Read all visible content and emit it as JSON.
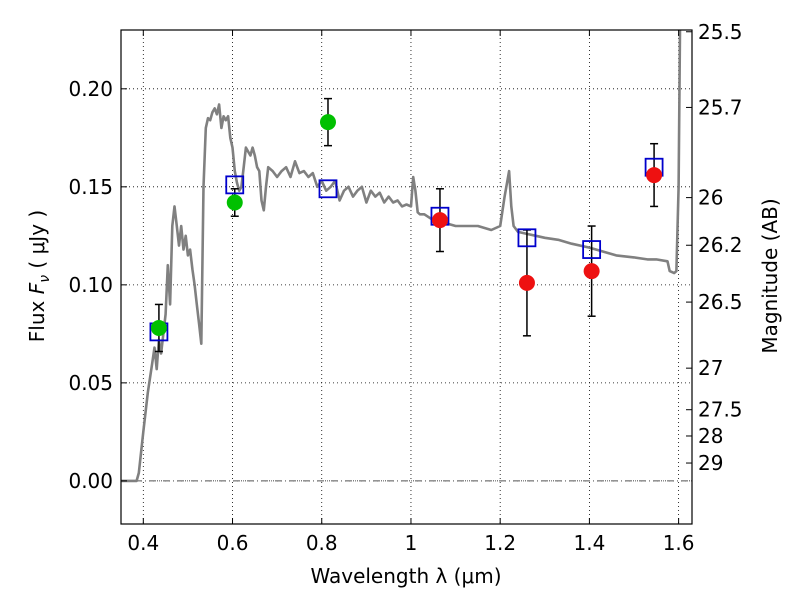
{
  "chart_data": {
    "type": "scatter",
    "xlabel": "Wavelength  λ (μm)",
    "ylabel_prefix": "Flux  ",
    "ylabel_symbol": "F",
    "ylabel_sub": "ν",
    "ylabel_suffix": "  ( μJy )",
    "y2label": "Magnitude (AB)",
    "xlim": [
      0.35,
      1.63
    ],
    "ylim": [
      -0.022,
      0.23
    ],
    "grid": true,
    "x_ticks": [
      0.4,
      0.6,
      0.8,
      1.0,
      1.2,
      1.4,
      1.6
    ],
    "x_tick_labels": [
      "0.4",
      "0.6",
      "0.8",
      "1",
      "1.2",
      "1.4",
      "1.6"
    ],
    "y_ticks": [
      0.0,
      0.05,
      0.1,
      0.15,
      0.2
    ],
    "y_tick_labels": [
      "0.00",
      "0.05",
      "0.10",
      "0.15",
      "0.20"
    ],
    "y2_ticks": [
      {
        "label": "25.5",
        "flux": 0.2291
      },
      {
        "label": "25.7",
        "flux": 0.1905
      },
      {
        "label": "26",
        "flux": 0.1445
      },
      {
        "label": "26.2",
        "flux": 0.1202
      },
      {
        "label": "26.5",
        "flux": 0.0912
      },
      {
        "label": "27",
        "flux": 0.0575
      },
      {
        "label": "27.5",
        "flux": 0.0363
      },
      {
        "label": "28",
        "flux": 0.0229
      },
      {
        "label": "29",
        "flux": 0.0091
      }
    ],
    "colors": {
      "model": "#808080",
      "optical": "#00c000",
      "infrared": "#ee1111",
      "squares": "#0000cc",
      "errorbar": "#000000",
      "zero_line": "#555555"
    },
    "series": [
      {
        "kind": "line",
        "points": [
          [
            0.35,
            0.0
          ],
          [
            0.385,
            0.0
          ],
          [
            0.39,
            0.004
          ],
          [
            0.4,
            0.025
          ],
          [
            0.41,
            0.045
          ],
          [
            0.42,
            0.06
          ],
          [
            0.425,
            0.068
          ],
          [
            0.43,
            0.057
          ],
          [
            0.435,
            0.072
          ],
          [
            0.44,
            0.065
          ],
          [
            0.45,
            0.085
          ],
          [
            0.455,
            0.11
          ],
          [
            0.46,
            0.09
          ],
          [
            0.465,
            0.13
          ],
          [
            0.47,
            0.14
          ],
          [
            0.475,
            0.13
          ],
          [
            0.48,
            0.12
          ],
          [
            0.485,
            0.13
          ],
          [
            0.49,
            0.118
          ],
          [
            0.495,
            0.125
          ],
          [
            0.5,
            0.115
          ],
          [
            0.505,
            0.118
          ],
          [
            0.51,
            0.108
          ],
          [
            0.515,
            0.1
          ],
          [
            0.52,
            0.09
          ],
          [
            0.525,
            0.08
          ],
          [
            0.53,
            0.07
          ],
          [
            0.535,
            0.15
          ],
          [
            0.54,
            0.18
          ],
          [
            0.545,
            0.185
          ],
          [
            0.55,
            0.184
          ],
          [
            0.555,
            0.188
          ],
          [
            0.56,
            0.19
          ],
          [
            0.565,
            0.187
          ],
          [
            0.57,
            0.192
          ],
          [
            0.575,
            0.18
          ],
          [
            0.58,
            0.186
          ],
          [
            0.585,
            0.184
          ],
          [
            0.59,
            0.186
          ],
          [
            0.595,
            0.175
          ],
          [
            0.6,
            0.17
          ],
          [
            0.605,
            0.158
          ],
          [
            0.61,
            0.152
          ],
          [
            0.615,
            0.148
          ],
          [
            0.62,
            0.15
          ],
          [
            0.625,
            0.16
          ],
          [
            0.63,
            0.17
          ],
          [
            0.635,
            0.168
          ],
          [
            0.64,
            0.166
          ],
          [
            0.645,
            0.17
          ],
          [
            0.65,
            0.166
          ],
          [
            0.655,
            0.16
          ],
          [
            0.66,
            0.158
          ],
          [
            0.665,
            0.143
          ],
          [
            0.67,
            0.138
          ],
          [
            0.675,
            0.15
          ],
          [
            0.68,
            0.16
          ],
          [
            0.69,
            0.158
          ],
          [
            0.7,
            0.155
          ],
          [
            0.71,
            0.158
          ],
          [
            0.72,
            0.16
          ],
          [
            0.73,
            0.155
          ],
          [
            0.74,
            0.163
          ],
          [
            0.75,
            0.157
          ],
          [
            0.76,
            0.158
          ],
          [
            0.77,
            0.155
          ],
          [
            0.78,
            0.157
          ],
          [
            0.79,
            0.15
          ],
          [
            0.8,
            0.153
          ],
          [
            0.81,
            0.148
          ],
          [
            0.82,
            0.15
          ],
          [
            0.83,
            0.153
          ],
          [
            0.84,
            0.143
          ],
          [
            0.85,
            0.148
          ],
          [
            0.86,
            0.15
          ],
          [
            0.87,
            0.145
          ],
          [
            0.88,
            0.148
          ],
          [
            0.89,
            0.15
          ],
          [
            0.9,
            0.142
          ],
          [
            0.91,
            0.148
          ],
          [
            0.92,
            0.145
          ],
          [
            0.93,
            0.147
          ],
          [
            0.94,
            0.142
          ],
          [
            0.95,
            0.145
          ],
          [
            0.96,
            0.142
          ],
          [
            0.97,
            0.143
          ],
          [
            0.98,
            0.14
          ],
          [
            0.99,
            0.141
          ],
          [
            1.0,
            0.14
          ],
          [
            1.005,
            0.155
          ],
          [
            1.01,
            0.148
          ],
          [
            1.015,
            0.137
          ],
          [
            1.02,
            0.136
          ],
          [
            1.03,
            0.136
          ],
          [
            1.05,
            0.133
          ],
          [
            1.07,
            0.132
          ],
          [
            1.1,
            0.13
          ],
          [
            1.12,
            0.13
          ],
          [
            1.15,
            0.13
          ],
          [
            1.18,
            0.128
          ],
          [
            1.2,
            0.13
          ],
          [
            1.21,
            0.145
          ],
          [
            1.22,
            0.158
          ],
          [
            1.225,
            0.14
          ],
          [
            1.23,
            0.13
          ],
          [
            1.24,
            0.127
          ],
          [
            1.26,
            0.126
          ],
          [
            1.28,
            0.125
          ],
          [
            1.3,
            0.124
          ],
          [
            1.33,
            0.123
          ],
          [
            1.36,
            0.121
          ],
          [
            1.4,
            0.119
          ],
          [
            1.43,
            0.117
          ],
          [
            1.46,
            0.115
          ],
          [
            1.5,
            0.114
          ],
          [
            1.53,
            0.113
          ],
          [
            1.55,
            0.113
          ],
          [
            1.575,
            0.112
          ],
          [
            1.58,
            0.107
          ],
          [
            1.59,
            0.106
          ],
          [
            1.595,
            0.107
          ],
          [
            1.6,
            0.15
          ],
          [
            1.603,
            0.23
          ]
        ]
      },
      {
        "kind": "circles-optical",
        "points": [
          {
            "x": 0.435,
            "y": 0.078,
            "err": 0.012
          },
          {
            "x": 0.605,
            "y": 0.142,
            "err": 0.007
          },
          {
            "x": 0.814,
            "y": 0.183,
            "err": 0.012
          }
        ]
      },
      {
        "kind": "circles-infrared",
        "points": [
          {
            "x": 1.065,
            "y": 0.133,
            "err": 0.016
          },
          {
            "x": 1.26,
            "y": 0.101,
            "err": 0.027
          },
          {
            "x": 1.405,
            "y": 0.107,
            "err": 0.023
          },
          {
            "x": 1.545,
            "y": 0.156,
            "err": 0.016
          }
        ]
      },
      {
        "kind": "open-squares",
        "points": [
          {
            "x": 0.435,
            "y": 0.076
          },
          {
            "x": 0.605,
            "y": 0.151
          },
          {
            "x": 0.814,
            "y": 0.149
          },
          {
            "x": 1.065,
            "y": 0.135
          },
          {
            "x": 1.26,
            "y": 0.124
          },
          {
            "x": 1.405,
            "y": 0.118
          },
          {
            "x": 1.545,
            "y": 0.16
          }
        ]
      }
    ]
  }
}
